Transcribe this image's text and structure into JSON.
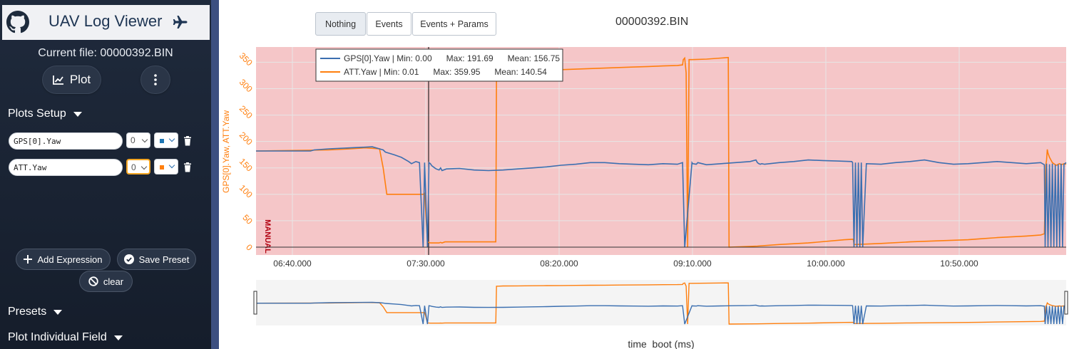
{
  "app": {
    "title_bold": "UAV",
    "title_rest": " Log Viewer"
  },
  "sidebar": {
    "current_file": "Current file: 00000392.BIN",
    "plot_label": "Plot",
    "plots_setup": "Plots Setup",
    "expressions": [
      {
        "value": "GPS[0].Yaw",
        "axis": "0",
        "color": "#1f77b4"
      },
      {
        "value": "ATT.Yaw",
        "axis": "0",
        "color": "#ff7f0e"
      }
    ],
    "add_expression": "Add Expression",
    "save_preset": "Save Preset",
    "clear": "clear",
    "presets": "Presets",
    "plot_individual_field": "Plot Individual Field"
  },
  "toolbar": {
    "nothing": "Nothing",
    "events": "Events",
    "events_params": "Events + Params"
  },
  "file_title": "00000392.BIN",
  "colors": {
    "gps": "#3b6fb0",
    "att": "#ff7f0e",
    "mode_band": "#f5c6c8"
  },
  "chart_data": {
    "type": "line",
    "ylabel": "GPS[0].Yaw, ATT.Yaw",
    "xlabel": "time_boot (ms)",
    "ylim": [
      0,
      360
    ],
    "y_ticks": [
      0,
      50,
      100,
      150,
      200,
      250,
      300,
      350
    ],
    "x_ticks": [
      "06:40.000",
      "07:30.000",
      "08:20.000",
      "09:10.000",
      "10:00.000",
      "10:50.000"
    ],
    "mode_label": "MANUAL",
    "legend": [
      {
        "name": "GPS[0].Yaw",
        "text": "GPS[0].Yaw | Min: 0.00      Max: 191.69      Mean: 156.75"
      },
      {
        "name": "ATT.Yaw",
        "text": "ATT.Yaw | Min: 0.01      Max: 359.95      Mean: 140.54"
      }
    ],
    "series": [
      {
        "name": "GPS[0].Yaw",
        "color": "#3b6fb0",
        "x": [
          0,
          75,
          80,
          100,
          130,
          160,
          170,
          175,
          178,
          190,
          200,
          210,
          214,
          220,
          225,
          230,
          232,
          236,
          238,
          240,
          242,
          246,
          248,
          252,
          254,
          256,
          262,
          280,
          300,
          320,
          340,
          360,
          380,
          400,
          420,
          440,
          460,
          480,
          500,
          520,
          540,
          560,
          580,
          587,
          590,
          600,
          601,
          606,
          608,
          620,
          640,
          660,
          680,
          688,
          690,
          692,
          694,
          696,
          700,
          720,
          740,
          760,
          780,
          800,
          820,
          821,
          823,
          825,
          827,
          829,
          831,
          833,
          835,
          840,
          860,
          880,
          900,
          920,
          940,
          960,
          980,
          1000,
          1020,
          1040,
          1060,
          1080,
          1085,
          1086,
          1088,
          1090,
          1092,
          1094,
          1096,
          1098,
          1100,
          1102,
          1104,
          1106,
          1108,
          1110,
          1112,
          1115
        ],
        "y": [
          182,
          182,
          184,
          186,
          188,
          190,
          186,
          184,
          180,
          175,
          170,
          162,
          158,
          162,
          160,
          0,
          160,
          0,
          160,
          158,
          154,
          150,
          148,
          146,
          150,
          145,
          148,
          149,
          146,
          145,
          146,
          148,
          150,
          152,
          155,
          157,
          160,
          160,
          158,
          157,
          156,
          158,
          157,
          160,
          0,
          160,
          158,
          157,
          160,
          156,
          158,
          160,
          162,
          165,
          160,
          158,
          157,
          158,
          157,
          160,
          162,
          165,
          164,
          163,
          162,
          160,
          0,
          160,
          0,
          160,
          0,
          160,
          0,
          158,
          157,
          160,
          162,
          165,
          160,
          157,
          158,
          160,
          162,
          160,
          158,
          160,
          156,
          0,
          158,
          0,
          157,
          0,
          158,
          0,
          156,
          0,
          157,
          0,
          158,
          0,
          157,
          160
        ]
      },
      {
        "name": "ATT.Yaw",
        "color": "#ff7f0e",
        "x": [
          0,
          100,
          130,
          150,
          170,
          175,
          180,
          200,
          230,
          232,
          236,
          240,
          252,
          254,
          256,
          260,
          280,
          300,
          320,
          330,
          331,
          333,
          340,
          360,
          380,
          400,
          420,
          440,
          460,
          480,
          500,
          520,
          540,
          560,
          580,
          587,
          588,
          590,
          592,
          594,
          596,
          600,
          620,
          640,
          650,
          651,
          652,
          690,
          720,
          760,
          810,
          822,
          823,
          825,
          860,
          900,
          940,
          980,
          1000,
          1020,
          1060,
          1080,
          1084,
          1085,
          1087,
          1088,
          1089,
          1090,
          1092,
          1094,
          1096,
          1098,
          1100,
          1102,
          1104,
          1106,
          1108,
          1110,
          1112,
          1115
        ],
        "y": [
          182,
          184,
          186,
          188,
          186,
          150,
          100,
          100,
          100,
          102,
          10,
          8,
          8,
          9,
          8,
          10,
          10,
          10,
          10,
          10,
          330,
          330,
          332,
          333,
          334,
          335,
          336,
          337,
          338,
          339,
          340,
          341,
          342,
          343,
          344,
          345,
          355,
          358,
          330,
          0,
          355,
          355,
          356,
          358,
          359,
          0,
          0,
          2,
          5,
          8,
          14,
          15,
          5,
          5,
          7,
          10,
          12,
          14,
          16,
          18,
          21,
          23,
          25,
          25,
          155,
          165,
          185,
          178,
          170,
          165,
          160,
          158,
          156,
          155,
          157,
          158,
          156,
          157,
          158,
          157
        ]
      }
    ],
    "xrange": [
      0,
      1115
    ]
  }
}
